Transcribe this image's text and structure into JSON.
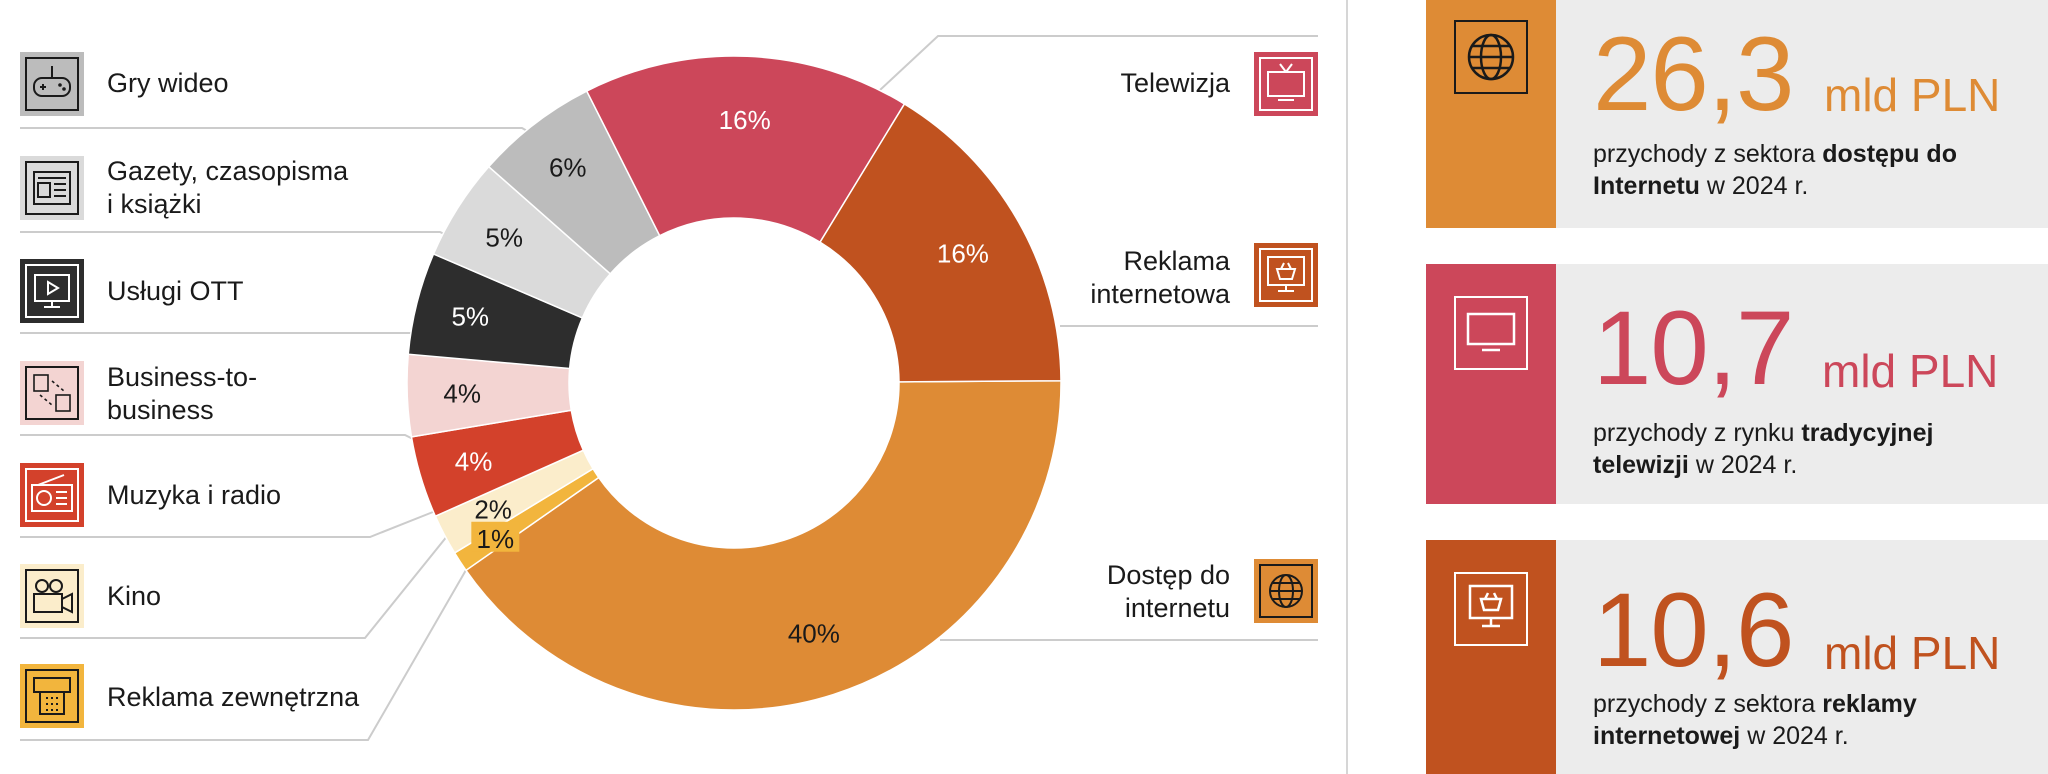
{
  "chart_data": {
    "type": "pie",
    "segments": [
      {
        "label": "Dostęp do internetu",
        "value": 40,
        "pct_label": "40%",
        "color": "#de8b35",
        "text_color": "#1a1a1a"
      },
      {
        "label": "Reklama zewnętrzna",
        "value": 1,
        "pct_label": "1%",
        "color": "#f2b53d",
        "text_color": "#1a1a1a"
      },
      {
        "label": "Kino",
        "value": 2,
        "pct_label": "2%",
        "color": "#fbedcb",
        "text_color": "#1a1a1a"
      },
      {
        "label": "Muzyka i radio",
        "value": 4,
        "pct_label": "4%",
        "color": "#d3412b",
        "text_color": "#ffffff"
      },
      {
        "label": "Business-to-business",
        "value": 4,
        "pct_label": "4%",
        "color": "#f3d4d2",
        "text_color": "#1a1a1a"
      },
      {
        "label": "Usługi OTT",
        "value": 5,
        "pct_label": "5%",
        "color": "#2d2d2d",
        "text_color": "#ffffff"
      },
      {
        "label": "Gazety, czasopisma i książki",
        "value": 5,
        "pct_label": "5%",
        "color": "#dadada",
        "text_color": "#1a1a1a"
      },
      {
        "label": "Gry wideo",
        "value": 6,
        "pct_label": "6%",
        "color": "#bcbcbc",
        "text_color": "#1a1a1a"
      },
      {
        "label": "Telewizja",
        "value": 16,
        "pct_label": "16%",
        "color": "#cc475a",
        "text_color": "#ffffff"
      },
      {
        "label": "Reklama internetowa",
        "value": 16,
        "pct_label": "16%",
        "color": "#c0521f",
        "text_color": "#ffffff"
      }
    ]
  },
  "legend_left": [
    {
      "label": "Gry wideo",
      "icon": "gamepad-icon",
      "color": "#bcbcbc"
    },
    {
      "label": "Gazety, czasopisma\ni książki",
      "icon": "newspaper-icon",
      "color": "#dadada"
    },
    {
      "label": "Usługi OTT",
      "icon": "ott-screen-icon",
      "color": "#2d2d2d"
    },
    {
      "label": "Business-to-\nbusiness",
      "icon": "b2b-documents-icon",
      "color": "#f3d4d2"
    },
    {
      "label": "Muzyka i radio",
      "icon": "radio-icon",
      "color": "#d3412b"
    },
    {
      "label": "Kino",
      "icon": "movie-camera-icon",
      "color": "#fbedcb"
    },
    {
      "label": "Reklama zewnętrzna",
      "icon": "billboard-icon",
      "color": "#f2b53d"
    }
  ],
  "legend_right": [
    {
      "label": "Telewizja",
      "icon": "tv-icon",
      "color": "#cc475a"
    },
    {
      "label": "Reklama\ninternetowa",
      "icon": "online-shop-icon",
      "color": "#c0521f"
    },
    {
      "label": "Dostęp do\ninternetu",
      "icon": "globe-icon",
      "color": "#de8b35"
    }
  ],
  "stats": [
    {
      "value": "26,3",
      "unit": "mld PLN",
      "color": "#de8b35",
      "icon": "globe-icon",
      "desc_pre": "przychody z sektora ",
      "desc_bold": "dostępu do Internetu",
      "desc_post": " w 2024 r."
    },
    {
      "value": "10,7",
      "unit": "mld PLN",
      "color": "#cc475a",
      "icon": "tv-icon",
      "desc_pre": "przychody z rynku ",
      "desc_bold": "tradycyjnej telewizji",
      "desc_post": " w 2024 r."
    },
    {
      "value": "10,6",
      "unit": "mld PLN",
      "color": "#c0521f",
      "icon": "online-shop-icon",
      "desc_pre": "przychody z sektora ",
      "desc_bold": "reklamy internetowej",
      "desc_post": " w 2024 r."
    }
  ]
}
